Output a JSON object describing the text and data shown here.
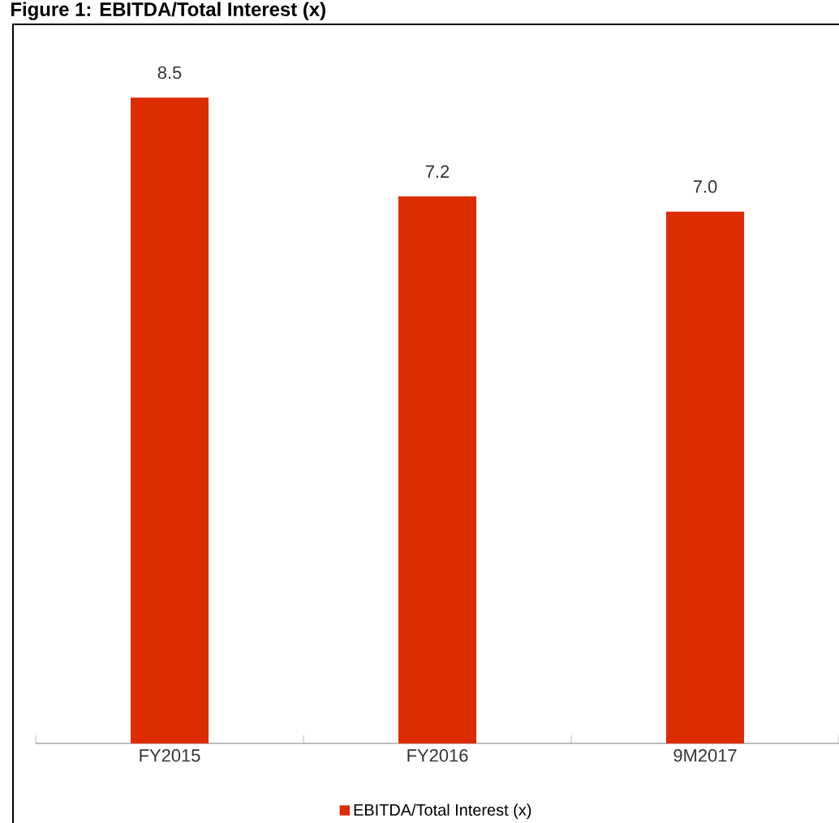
{
  "chart_data": {
    "type": "bar",
    "title": "Figure 1: EBITDA/Total Interest (x)",
    "categories": [
      "FY2015",
      "FY2016",
      "9M2017"
    ],
    "series": [
      {
        "name": "EBITDA/Total Interest (x)",
        "color": "#dd2c00",
        "values": [
          8.5,
          7.2,
          7.0
        ],
        "value_labels": [
          "8.5",
          "7.2",
          "7.0"
        ]
      }
    ],
    "ylim": [
      0,
      9.4
    ],
    "legend": "bottom"
  }
}
